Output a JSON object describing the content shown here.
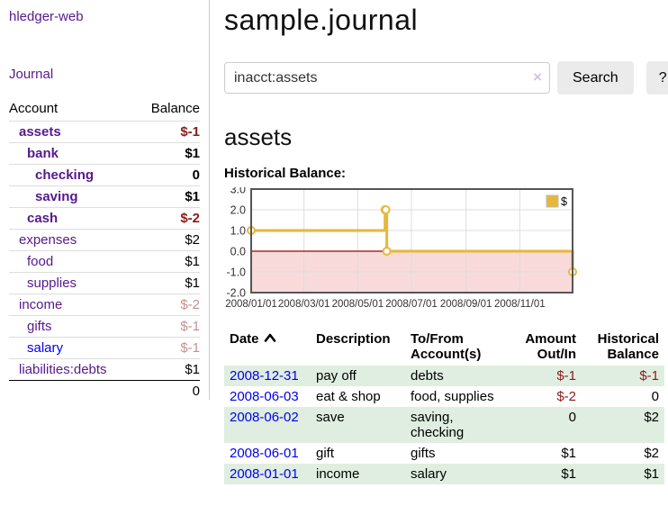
{
  "app": {
    "title": "hledger-web",
    "nav_journal": "Journal"
  },
  "sidebar": {
    "table": {
      "account_header": "Account",
      "balance_header": "Balance",
      "rows": [
        {
          "account": "assets",
          "balance": "$-1",
          "depth": 1,
          "bold": true,
          "neg": "strong",
          "link": "purple"
        },
        {
          "account": "bank",
          "balance": "$1",
          "depth": 2,
          "bold": true,
          "neg": "none",
          "link": "purple"
        },
        {
          "account": "checking",
          "balance": "0",
          "depth": 3,
          "bold": true,
          "neg": "none",
          "link": "purple"
        },
        {
          "account": "saving",
          "balance": "$1",
          "depth": 3,
          "bold": true,
          "neg": "none",
          "link": "purple"
        },
        {
          "account": "cash",
          "balance": "$-2",
          "depth": 2,
          "bold": true,
          "neg": "strong",
          "link": "purple"
        },
        {
          "account": "expenses",
          "balance": "$2",
          "depth": 1,
          "bold": false,
          "neg": "none",
          "link": "purple"
        },
        {
          "account": "food",
          "balance": "$1",
          "depth": 2,
          "bold": false,
          "neg": "none",
          "link": "purple"
        },
        {
          "account": "supplies",
          "balance": "$1",
          "depth": 2,
          "bold": false,
          "neg": "none",
          "link": "purple"
        },
        {
          "account": "income",
          "balance": "$-2",
          "depth": 1,
          "bold": false,
          "neg": "faded",
          "link": "purple"
        },
        {
          "account": "gifts",
          "balance": "$-1",
          "depth": 2,
          "bold": false,
          "neg": "faded",
          "link": "purple"
        },
        {
          "account": "salary",
          "balance": "$-1",
          "depth": 2,
          "bold": false,
          "neg": "faded",
          "link": "blue"
        },
        {
          "account": "liabilities:debts",
          "balance": "$1",
          "depth": 1,
          "bold": false,
          "neg": "none",
          "link": "purple"
        }
      ],
      "total": "0"
    }
  },
  "main": {
    "title": "sample.journal",
    "search": {
      "value": "inacct:assets",
      "clear_icon": "×",
      "button_label": "Search",
      "help_label": "?"
    },
    "account_heading": "assets",
    "chart_label": "Historical Balance:"
  },
  "chart_data": {
    "type": "line",
    "step": true,
    "title": "Historical Balance",
    "x_range": [
      "2008-01-01",
      "2008-12-31"
    ],
    "ylim": [
      -2,
      3
    ],
    "y_ticks": [
      3.0,
      2.0,
      1.0,
      0.0,
      -1.0,
      -2.0
    ],
    "x_ticks": [
      "2008/01/01",
      "2008/03/01",
      "2008/05/01",
      "2008/07/01",
      "2008/09/01",
      "2008/11/01"
    ],
    "series": [
      {
        "name": "$",
        "color": "#e7b73b",
        "points": [
          [
            "2008-01-01",
            1
          ],
          [
            "2008-06-01",
            2
          ],
          [
            "2008-06-02",
            2
          ],
          [
            "2008-06-03",
            0
          ],
          [
            "2008-12-31",
            -1
          ]
        ]
      }
    ],
    "legend_position": "top-right",
    "grid": true,
    "zero_line_color": "#990000",
    "below_zero_fill": "#f9dada",
    "border_color": "#555555",
    "gridline_color": "#dddddd"
  },
  "register": {
    "columns": {
      "date": "Date",
      "description": "Description",
      "accounts": "To/From Account(s)",
      "amount": "Amount Out/In",
      "balance": "Historical Balance"
    },
    "sort_icon": "chevron-up",
    "rows": [
      {
        "date": "2008-12-31",
        "description": "pay off",
        "accounts": "debts",
        "amount": "$-1",
        "balance": "$-1",
        "amount_neg": true,
        "balance_neg": true,
        "shaded": true
      },
      {
        "date": "2008-06-03",
        "description": "eat & shop",
        "accounts": "food, supplies",
        "amount": "$-2",
        "balance": "0",
        "amount_neg": true,
        "balance_neg": false,
        "shaded": false
      },
      {
        "date": "2008-06-02",
        "description": "save",
        "accounts": "saving, checking",
        "amount": "0",
        "balance": "$2",
        "amount_neg": false,
        "balance_neg": false,
        "shaded": true
      },
      {
        "date": "2008-06-01",
        "description": "gift",
        "accounts": "gifts",
        "amount": "$1",
        "balance": "$2",
        "amount_neg": false,
        "balance_neg": false,
        "shaded": false
      },
      {
        "date": "2008-01-01",
        "description": "income",
        "accounts": "salary",
        "amount": "$1",
        "balance": "$1",
        "amount_neg": false,
        "balance_neg": false,
        "shaded": true
      }
    ]
  }
}
